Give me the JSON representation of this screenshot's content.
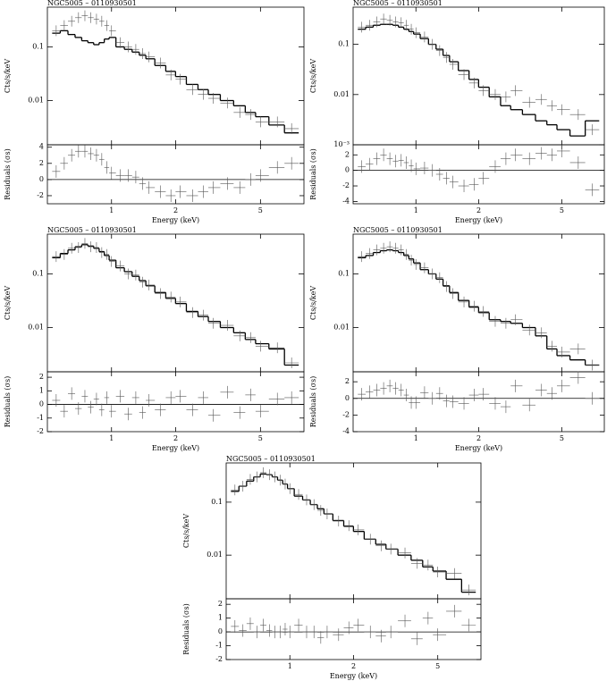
{
  "chart_data": [
    {
      "type": "spectrum",
      "title": "NGC5005 – 0110930501",
      "xlabel": "Energy (keV)",
      "ylabel": "Cts/s/keV",
      "residual_label": "Residuals (σs)",
      "xlog": true,
      "ylog": true,
      "xlim": [
        0.5,
        8
      ],
      "xticks": [
        1,
        2,
        5
      ],
      "ylim": [
        0.0015,
        0.55
      ],
      "yticks": [
        0.1,
        0.01
      ],
      "residual_ylim": [
        -3,
        4.3
      ],
      "residual_yticks": [
        -2,
        0,
        2,
        4
      ],
      "x": [
        0.55,
        0.6,
        0.65,
        0.7,
        0.75,
        0.8,
        0.85,
        0.9,
        0.95,
        1.0,
        1.1,
        1.2,
        1.3,
        1.4,
        1.5,
        1.7,
        1.9,
        2.1,
        2.4,
        2.7,
        3.0,
        3.5,
        4.0,
        4.5,
        5.0,
        6.0,
        7.0
      ],
      "values": [
        0.2,
        0.25,
        0.3,
        0.35,
        0.38,
        0.35,
        0.33,
        0.3,
        0.25,
        0.2,
        0.12,
        0.1,
        0.09,
        0.075,
        0.065,
        0.05,
        0.03,
        0.025,
        0.016,
        0.013,
        0.011,
        0.009,
        0.006,
        0.0055,
        0.004,
        0.004,
        0.003
      ],
      "model": [
        0.18,
        0.2,
        0.17,
        0.15,
        0.13,
        0.12,
        0.11,
        0.12,
        0.14,
        0.15,
        0.1,
        0.09,
        0.08,
        0.07,
        0.06,
        0.045,
        0.035,
        0.028,
        0.02,
        0.016,
        0.013,
        0.01,
        0.008,
        0.006,
        0.005,
        0.0035,
        0.0025
      ],
      "residuals": [
        1,
        2,
        3,
        3.5,
        3.5,
        3.2,
        3,
        2.5,
        1.5,
        0.8,
        0.5,
        0.5,
        0.3,
        -0.5,
        -1,
        -1.5,
        -2,
        -1.5,
        -2,
        -1.5,
        -1,
        -0.5,
        -1,
        0,
        0.5,
        1.5,
        2
      ]
    },
    {
      "type": "spectrum",
      "title": "NGC5005 – 0110930501",
      "xlabel": "Energy (keV)",
      "ylabel": "Cts/s/keV",
      "residual_label": "Residuals (σs)",
      "xlog": true,
      "ylog": true,
      "xlim": [
        0.5,
        8
      ],
      "xticks": [
        1,
        2,
        5
      ],
      "ylim": [
        0.001,
        0.55
      ],
      "yticks": [
        0.1,
        0.01,
        {
          "value": 0.001,
          "label": "10⁻³"
        }
      ],
      "residual_ylim": [
        -4.3,
        3.3
      ],
      "residual_yticks": [
        -4,
        -2,
        0,
        2
      ],
      "x": [
        0.55,
        0.6,
        0.65,
        0.7,
        0.75,
        0.8,
        0.85,
        0.9,
        0.95,
        1.0,
        1.1,
        1.2,
        1.3,
        1.4,
        1.5,
        1.7,
        1.9,
        2.1,
        2.4,
        2.7,
        3.0,
        3.5,
        4.0,
        4.5,
        5.0,
        6.0,
        7.0
      ],
      "values": [
        0.22,
        0.24,
        0.28,
        0.32,
        0.3,
        0.28,
        0.27,
        0.24,
        0.2,
        0.17,
        0.14,
        0.1,
        0.075,
        0.055,
        0.04,
        0.025,
        0.017,
        0.012,
        0.01,
        0.009,
        0.012,
        0.007,
        0.008,
        0.006,
        0.005,
        0.004,
        0.002
      ],
      "model": [
        0.2,
        0.22,
        0.24,
        0.25,
        0.25,
        0.24,
        0.22,
        0.2,
        0.18,
        0.16,
        0.13,
        0.1,
        0.08,
        0.06,
        0.045,
        0.03,
        0.02,
        0.014,
        0.009,
        0.006,
        0.005,
        0.004,
        0.003,
        0.0025,
        0.002,
        0.0015,
        0.003
      ],
      "residuals": [
        0.5,
        0.8,
        1.5,
        2,
        1.5,
        1.2,
        1.3,
        1,
        0.6,
        0.2,
        0.3,
        0,
        -0.5,
        -1,
        -1.5,
        -2,
        -1.8,
        -1,
        0.5,
        1.5,
        2,
        1.5,
        2.2,
        2,
        2.5,
        1,
        -2.5
      ]
    },
    {
      "type": "spectrum",
      "title": "NGC5005 – 0110930501",
      "xlabel": "Energy (keV)",
      "ylabel": "Cts/s/keV",
      "residual_label": "Residuals (σs)",
      "xlog": true,
      "ylog": true,
      "xlim": [
        0.5,
        8
      ],
      "xticks": [
        1,
        2,
        5
      ],
      "ylim": [
        0.0015,
        0.55
      ],
      "yticks": [
        0.1,
        0.01
      ],
      "residual_ylim": [
        -2,
        2.4
      ],
      "residual_yticks": [
        -2,
        -1,
        0,
        1,
        2
      ],
      "x": [
        0.55,
        0.6,
        0.65,
        0.7,
        0.75,
        0.8,
        0.85,
        0.9,
        0.95,
        1.0,
        1.1,
        1.2,
        1.3,
        1.4,
        1.5,
        1.7,
        1.9,
        2.1,
        2.4,
        2.7,
        3.0,
        3.5,
        4.0,
        4.5,
        5.0,
        6.0,
        7.0
      ],
      "values": [
        0.21,
        0.23,
        0.3,
        0.31,
        0.37,
        0.32,
        0.31,
        0.25,
        0.23,
        0.17,
        0.14,
        0.1,
        0.095,
        0.07,
        0.062,
        0.043,
        0.037,
        0.03,
        0.019,
        0.017,
        0.012,
        0.011,
        0.007,
        0.0065,
        0.0045,
        0.0042,
        0.0022
      ],
      "model": [
        0.2,
        0.24,
        0.28,
        0.32,
        0.35,
        0.33,
        0.3,
        0.26,
        0.22,
        0.18,
        0.13,
        0.11,
        0.09,
        0.075,
        0.06,
        0.045,
        0.035,
        0.028,
        0.02,
        0.016,
        0.013,
        0.01,
        0.008,
        0.006,
        0.005,
        0.004,
        0.002
      ],
      "residuals": [
        0.3,
        -0.5,
        0.8,
        -0.3,
        0.6,
        -0.2,
        0.4,
        -0.4,
        0.5,
        -0.5,
        0.6,
        -0.7,
        0.5,
        -0.6,
        0.3,
        -0.4,
        0.5,
        0.6,
        -0.4,
        0.5,
        -0.8,
        0.9,
        -0.6,
        0.7,
        -0.5,
        0.4,
        0.5
      ]
    },
    {
      "type": "spectrum",
      "title": "NGC5005 – 0110930501",
      "xlabel": "Energy (keV)",
      "ylabel": "Cts/s/keV",
      "residual_label": "Residuals (σs)",
      "xlog": true,
      "ylog": true,
      "xlim": [
        0.5,
        8
      ],
      "xticks": [
        1,
        2,
        5
      ],
      "ylim": [
        0.0015,
        0.55
      ],
      "yticks": [
        0.1,
        0.01
      ],
      "residual_ylim": [
        -4,
        3.2
      ],
      "residual_yticks": [
        -4,
        -2,
        0,
        2
      ],
      "x": [
        0.55,
        0.6,
        0.65,
        0.7,
        0.75,
        0.8,
        0.85,
        0.9,
        0.95,
        1.0,
        1.1,
        1.2,
        1.3,
        1.4,
        1.5,
        1.7,
        1.9,
        2.1,
        2.4,
        2.7,
        3.0,
        3.5,
        4.0,
        4.5,
        5.0,
        6.0,
        7.0
      ],
      "values": [
        0.21,
        0.24,
        0.28,
        0.3,
        0.32,
        0.3,
        0.28,
        0.23,
        0.18,
        0.15,
        0.13,
        0.1,
        0.085,
        0.058,
        0.043,
        0.03,
        0.025,
        0.02,
        0.013,
        0.012,
        0.014,
        0.009,
        0.008,
        0.0045,
        0.0035,
        0.004,
        0.002
      ],
      "model": [
        0.2,
        0.22,
        0.25,
        0.27,
        0.28,
        0.27,
        0.25,
        0.22,
        0.19,
        0.16,
        0.12,
        0.1,
        0.08,
        0.06,
        0.045,
        0.032,
        0.024,
        0.019,
        0.014,
        0.013,
        0.012,
        0.01,
        0.007,
        0.004,
        0.003,
        0.0025,
        0.002
      ],
      "residuals": [
        0.5,
        0.8,
        1,
        1.2,
        1.5,
        1.2,
        1,
        0.4,
        -0.5,
        -0.5,
        0.7,
        0,
        0.6,
        -0.3,
        -0.4,
        -0.6,
        0.4,
        0.5,
        -0.6,
        -1,
        1.5,
        -0.8,
        1,
        0.6,
        1.5,
        2.5,
        0
      ]
    },
    {
      "type": "spectrum",
      "title": "NGC5005 – 0110930501",
      "xlabel": "Energy (keV)",
      "ylabel": "Cts/s/keV",
      "residual_label": "Residuals (σs)",
      "xlog": true,
      "ylog": true,
      "xlim": [
        0.5,
        8
      ],
      "xticks": [
        1,
        2,
        5
      ],
      "ylim": [
        0.0015,
        0.55
      ],
      "yticks": [
        0.1,
        0.01
      ],
      "residual_ylim": [
        -2,
        2.4
      ],
      "residual_yticks": [
        -2,
        -1,
        0,
        1,
        2
      ],
      "x": [
        0.55,
        0.6,
        0.65,
        0.7,
        0.75,
        0.8,
        0.85,
        0.9,
        0.95,
        1.0,
        1.1,
        1.2,
        1.3,
        1.4,
        1.5,
        1.7,
        1.9,
        2.1,
        2.4,
        2.7,
        3.0,
        3.5,
        4.0,
        4.5,
        5.0,
        6.0,
        7.0
      ],
      "values": [
        0.17,
        0.2,
        0.27,
        0.3,
        0.36,
        0.33,
        0.3,
        0.26,
        0.22,
        0.18,
        0.14,
        0.11,
        0.09,
        0.07,
        0.06,
        0.044,
        0.036,
        0.03,
        0.02,
        0.015,
        0.013,
        0.011,
        0.007,
        0.0065,
        0.0048,
        0.0045,
        0.0022
      ],
      "model": [
        0.16,
        0.2,
        0.25,
        0.3,
        0.34,
        0.33,
        0.3,
        0.26,
        0.22,
        0.18,
        0.13,
        0.11,
        0.09,
        0.075,
        0.06,
        0.045,
        0.035,
        0.028,
        0.02,
        0.016,
        0.013,
        0.01,
        0.008,
        0.006,
        0.005,
        0.0035,
        0.002
      ],
      "residuals": [
        0.4,
        0.1,
        0.6,
        0,
        0.5,
        0.1,
        0,
        0,
        0.2,
        0,
        0.5,
        0,
        0,
        -0.4,
        0,
        -0.2,
        0.3,
        0.5,
        0,
        -0.3,
        0,
        0.8,
        -0.5,
        1,
        -0.2,
        1.5,
        0.5
      ]
    }
  ]
}
